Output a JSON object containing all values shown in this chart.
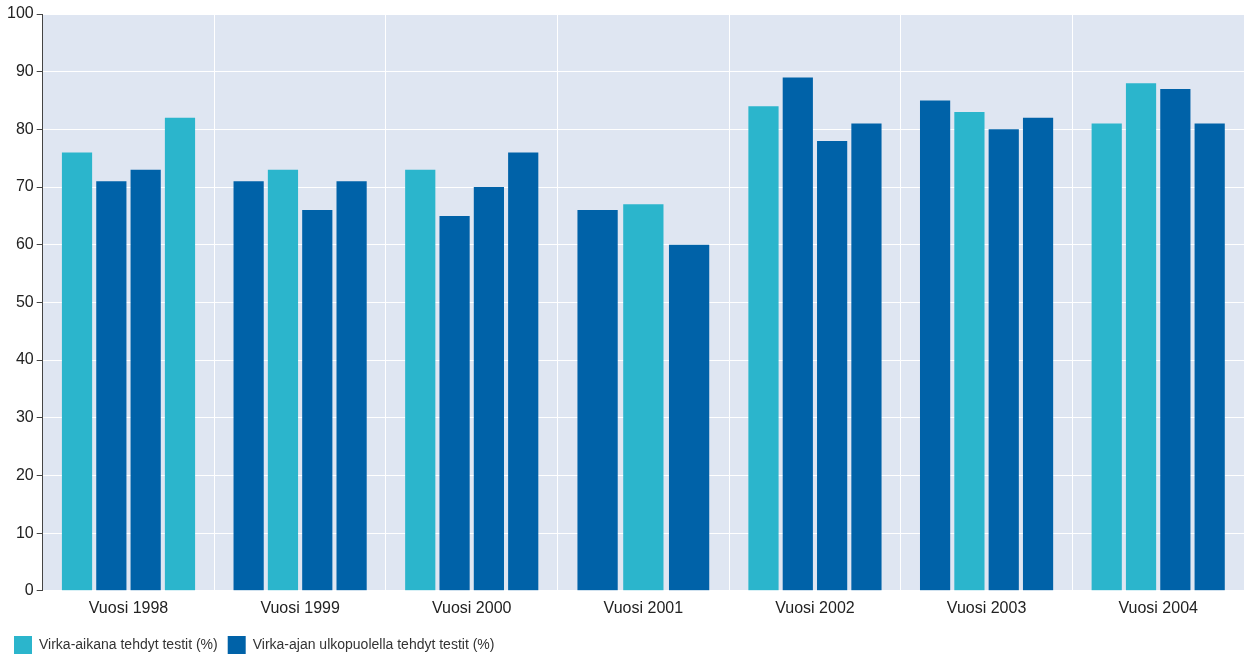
{
  "chart_data": {
    "type": "bar",
    "categories": [
      "Vuosi 1998",
      "Vuosi 1999",
      "Vuosi 2000",
      "Vuosi 2001",
      "Vuosi 2002",
      "Vuosi 2003",
      "Vuosi 2004"
    ],
    "series": [
      {
        "values": [
          76,
          71,
          73,
          66,
          84,
          85,
          81
        ],
        "colors": [
          "#2bb5cc",
          "#0062a8",
          "#2bb5cc",
          "#0062a8",
          "#2bb5cc",
          "#0062a8",
          "#2bb5cc"
        ]
      },
      {
        "values": [
          71,
          73,
          65,
          67,
          89,
          83,
          88
        ],
        "colors": [
          "#0062a8",
          "#2bb5cc",
          "#0062a8",
          "#2bb5cc",
          "#0062a8",
          "#2bb5cc",
          "#2bb5cc"
        ]
      },
      {
        "values": [
          73,
          66,
          70,
          60,
          78,
          80,
          87
        ],
        "colors": [
          "#0062a8",
          "#0062a8",
          "#0062a8",
          "#0062a8",
          "#0062a8",
          "#0062a8",
          "#0062a8"
        ]
      },
      {
        "values": [
          82,
          71,
          76,
          null,
          81,
          82,
          81
        ],
        "colors": [
          "#2bb5cc",
          "#0062a8",
          "#0062a8",
          null,
          "#0062a8",
          "#0062a8",
          "#0062a8"
        ]
      },
      {
        "name": "Virka-aikana tehdyt testit (%)",
        "color": "#2bb5cc",
        "values": [
          null,
          null,
          null,
          null,
          null,
          null,
          null
        ]
      },
      {
        "name": "Virka-ajan ulkopuolella tehdyt testit (%)",
        "color": "#0062a8",
        "values": [
          null,
          null,
          null,
          null,
          null,
          null,
          null
        ]
      }
    ],
    "ylim": [
      0,
      100
    ],
    "yticks": [
      0,
      10,
      20,
      30,
      40,
      50,
      60,
      70,
      80,
      90,
      100
    ],
    "grid": true,
    "legend": "bottom left"
  }
}
